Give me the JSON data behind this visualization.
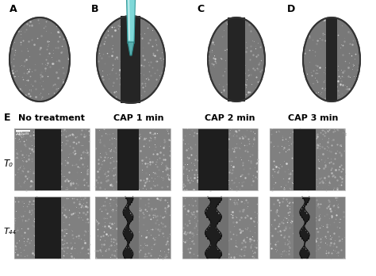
{
  "bg_color": "#f0f0f0",
  "cell_texture_color": "#a0a0a0",
  "dark_color": "#2a2a2a",
  "scratch_color": "#404040",
  "panel_labels": [
    "A",
    "B",
    "C",
    "D",
    "E"
  ],
  "col_labels": [
    "No treatment",
    "CAP 1 min",
    "CAP 2 min",
    "CAP 3 min"
  ],
  "row_labels": [
    "T₀",
    "T₄₄"
  ],
  "needle_color": "#7fd8d8",
  "needle_tip": "#5ab0b0",
  "outline_color": "#333333",
  "white": "#ffffff",
  "label_fontsize": 9,
  "sublabel_fontsize": 7.5,
  "scale_bar": "200μm"
}
